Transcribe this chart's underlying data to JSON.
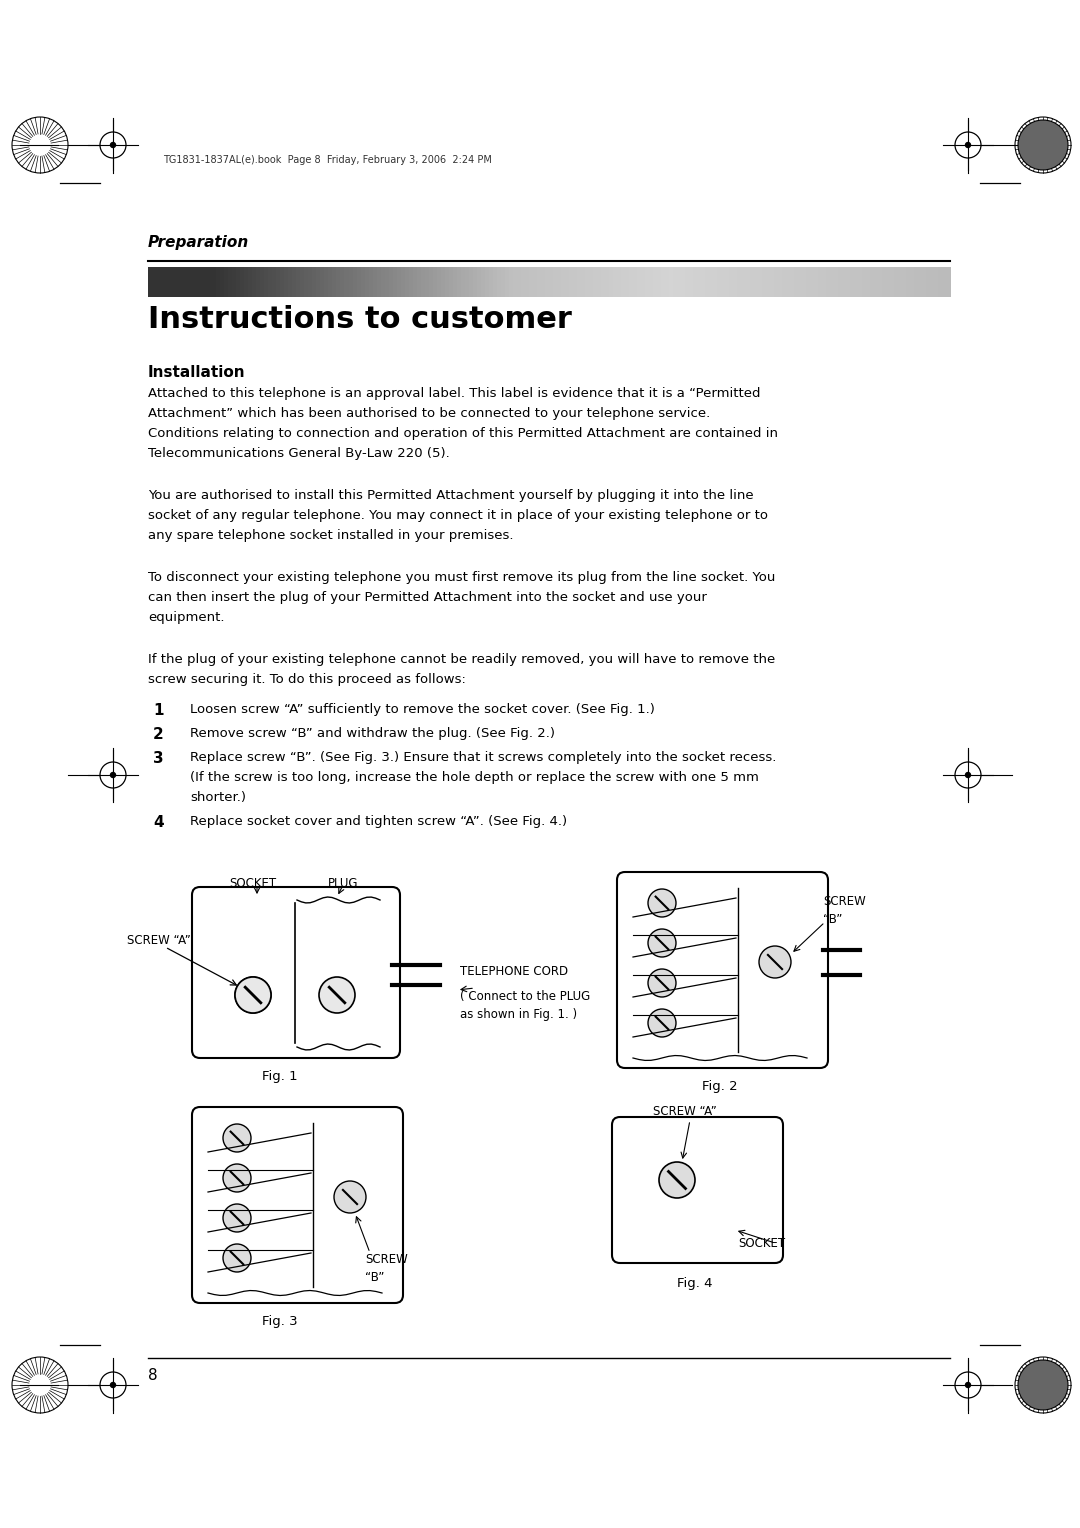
{
  "bg_color": "#ffffff",
  "page_width": 10.8,
  "page_height": 15.28,
  "header_text": "TG1831-1837AL(e).book  Page 8  Friday, February 3, 2006  2:24 PM",
  "section_label": "Preparation",
  "title": "Instructions to customer",
  "subtitle": "Installation",
  "para1": "Attached to this telephone is an approval label. This label is evidence that it is a “Permitted\nAttachment” which has been authorised to be connected to your telephone service.\nConditions relating to connection and operation of this Permitted Attachment are contained in\nTelecommunications General By-Law 220 (5).",
  "para2": "You are authorised to install this Permitted Attachment yourself by plugging it into the line\nsocket of any regular telephone. You may connect it in place of your existing telephone or to\nany spare telephone socket installed in your premises.",
  "para3": "To disconnect your existing telephone you must first remove its plug from the line socket. You\ncan then insert the plug of your Permitted Attachment into the socket and use your\nequipment.",
  "para4": "If the plug of your existing telephone cannot be readily removed, you will have to remove the\nscrew securing it. To do this proceed as follows:",
  "step1": "Loosen screw “A” sufficiently to remove the socket cover. (See Fig. 1.)",
  "step2": "Remove screw “B” and withdraw the plug. (See Fig. 2.)",
  "step3": "Replace screw “B”. (See Fig. 3.) Ensure that it screws completely into the socket recess.\n(If the screw is too long, increase the hole depth or replace the screw with one 5 mm\nshorter.)",
  "step4": "Replace socket cover and tighten screw “A”. (See Fig. 4.)",
  "fig1_label": "Fig. 1",
  "fig2_label": "Fig. 2",
  "fig3_label": "Fig. 3",
  "fig4_label": "Fig. 4",
  "page_number": "8"
}
